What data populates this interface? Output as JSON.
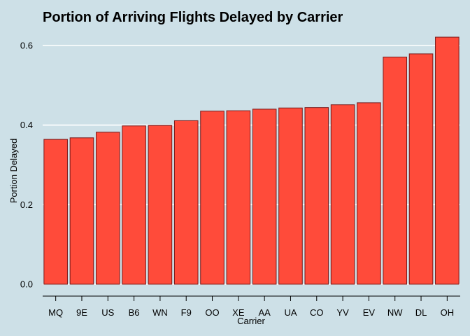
{
  "chart_data": {
    "type": "bar",
    "title": "Portion of Arriving Flights Delayed by Carrier",
    "xlabel": "Carrier",
    "ylabel": "Portion Delayed",
    "categories": [
      "MQ",
      "9E",
      "US",
      "B6",
      "WN",
      "F9",
      "OO",
      "XE",
      "AA",
      "UA",
      "CO",
      "YV",
      "EV",
      "NW",
      "DL",
      "OH"
    ],
    "values": [
      0.364,
      0.368,
      0.382,
      0.398,
      0.399,
      0.411,
      0.435,
      0.436,
      0.44,
      0.443,
      0.444,
      0.451,
      0.456,
      0.571,
      0.579,
      0.621
    ],
    "ylim": [
      0,
      0.63
    ],
    "yticks": [
      "0.0",
      "0.2",
      "0.4",
      "0.6"
    ],
    "ytick_values": [
      0.0,
      0.2,
      0.4,
      0.6
    ],
    "grid": "horizontal major lines, white",
    "legend": "none",
    "colors": {
      "background": "#cde0e7",
      "bar_fill": "#ff4b3a",
      "bar_stroke": "#7a1a1a",
      "grid": "#ffffff",
      "axis": "#000000"
    }
  }
}
